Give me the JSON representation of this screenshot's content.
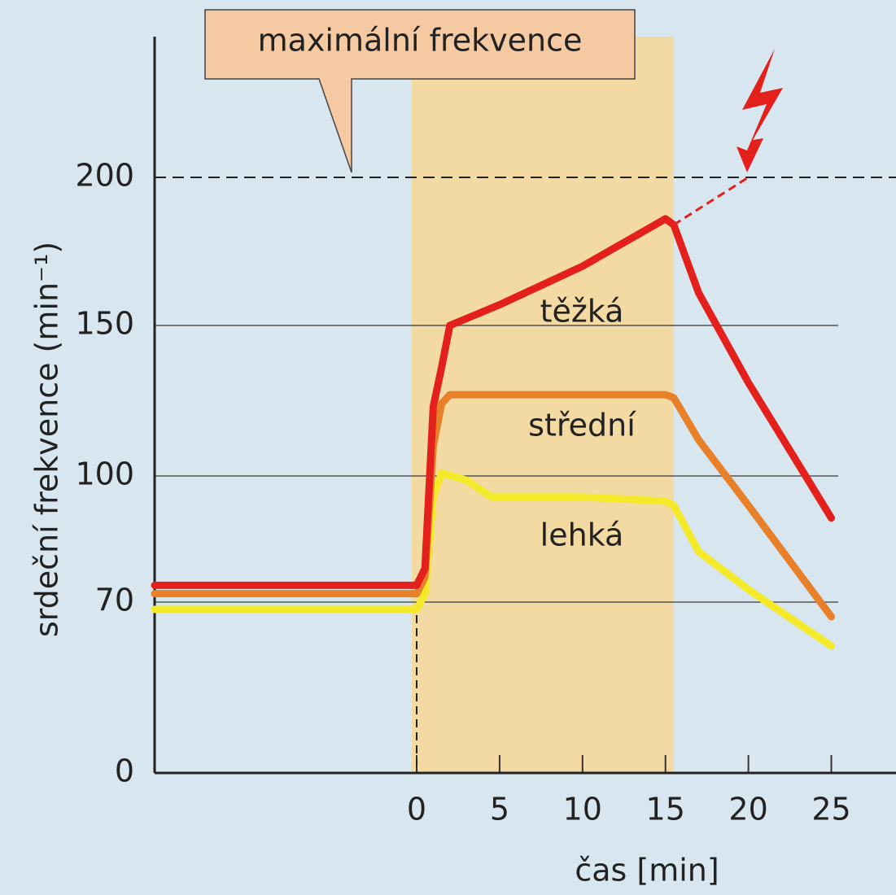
{
  "chart_data": {
    "type": "line",
    "annotation": "maximální frekvence",
    "xlabel": "čas [min]",
    "ylabel": "srdeční frekvence (min⁻¹)",
    "xlim": [
      -15.8,
      28.9
    ],
    "ylim": [
      0,
      247
    ],
    "xticks": [
      0,
      5,
      10,
      15,
      20,
      25
    ],
    "yticks": [
      0,
      70,
      100,
      150,
      200
    ],
    "max_line": 200,
    "band": [
      0,
      15.5
    ],
    "band_color": "#f3d9a2",
    "series": [
      {
        "name": "těžká",
        "color": "#e3201b",
        "x": [
          -15.8,
          0,
          0.5,
          1,
          1.5,
          2,
          5,
          10,
          15,
          15.5,
          17,
          20,
          25
        ],
        "values": [
          74,
          74,
          78,
          123,
          136,
          150,
          157,
          170,
          186,
          184,
          161,
          131,
          90
        ]
      },
      {
        "name": "střední",
        "color": "#e8802a",
        "x": [
          -15.8,
          0,
          0.5,
          1,
          1.5,
          2,
          5,
          10,
          15,
          15.5,
          17,
          20,
          25
        ],
        "values": [
          72,
          72,
          76,
          110,
          124,
          127,
          127,
          127,
          127,
          126,
          112,
          93,
          64
        ]
      },
      {
        "name": "lehká",
        "color": "#f4ea2a",
        "x": [
          -15.8,
          0,
          0.5,
          1,
          1.5,
          3,
          4.5,
          10,
          15,
          15.5,
          17,
          20,
          25
        ],
        "values": [
          67,
          67,
          72,
          95,
          101,
          99,
          95,
          95,
          94,
          93,
          82,
          73,
          52
        ]
      }
    ],
    "extrapolation": {
      "color": "#e3201b",
      "x": [
        15.5,
        20
      ],
      "values": [
        184,
        200
      ]
    }
  }
}
